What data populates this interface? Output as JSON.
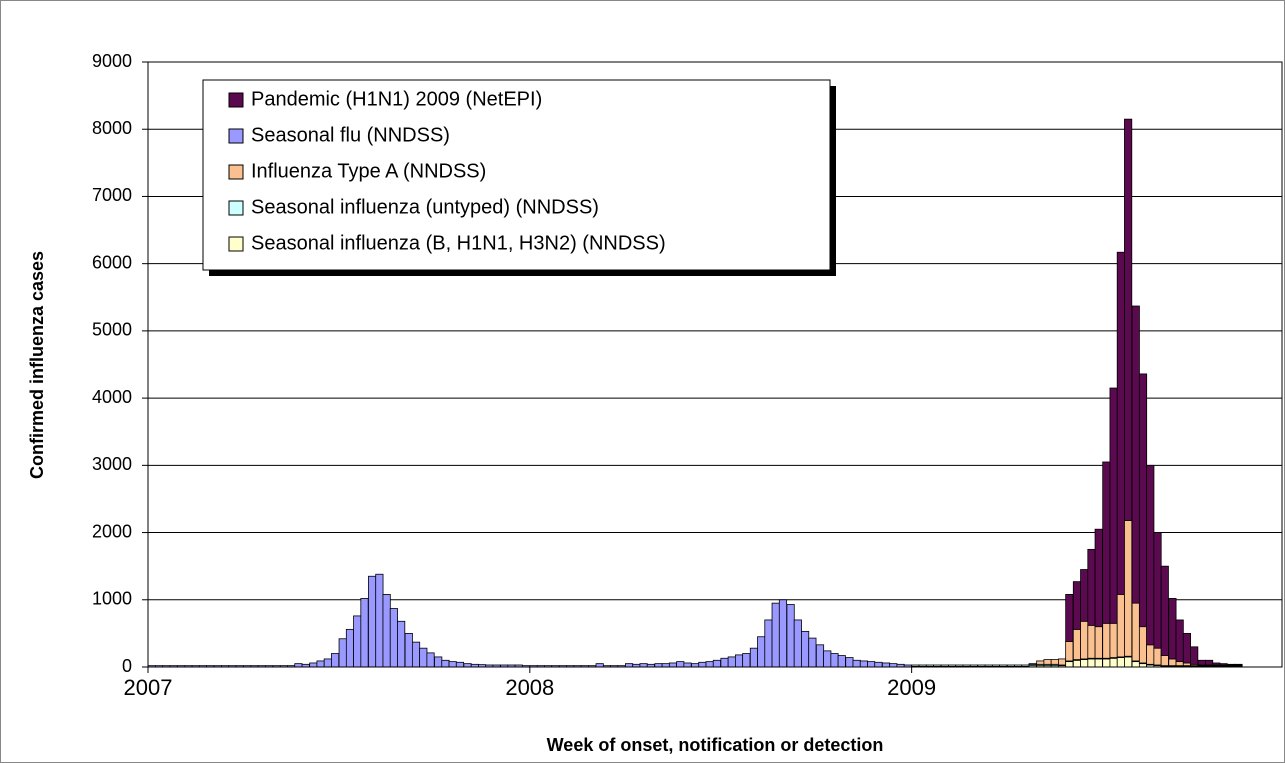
{
  "chart_data": {
    "type": "stacked-bar",
    "x_label": "Week of onset, notification or detection",
    "y_label": "Confirmed influenza cases",
    "xlim": [
      2007,
      2009.97
    ],
    "xticks": [
      2007,
      2008,
      2009
    ],
    "ylim": [
      0,
      9000
    ],
    "yticks": [
      0,
      1000,
      2000,
      3000,
      4000,
      5000,
      6000,
      7000,
      8000,
      9000
    ],
    "grid": true,
    "legend": "upper-left",
    "x": [
      2007.01,
      2007.029,
      2007.048,
      2007.067,
      2007.087,
      2007.106,
      2007.125,
      2007.144,
      2007.163,
      2007.183,
      2007.202,
      2007.221,
      2007.24,
      2007.26,
      2007.279,
      2007.298,
      2007.317,
      2007.337,
      2007.356,
      2007.375,
      2007.394,
      2007.413,
      2007.433,
      2007.452,
      2007.471,
      2007.49,
      2007.51,
      2007.529,
      2007.548,
      2007.567,
      2007.587,
      2007.606,
      2007.625,
      2007.644,
      2007.663,
      2007.683,
      2007.702,
      2007.721,
      2007.74,
      2007.76,
      2007.779,
      2007.798,
      2007.817,
      2007.837,
      2007.856,
      2007.875,
      2007.894,
      2007.913,
      2007.933,
      2007.952,
      2007.971,
      2007.99,
      2008.01,
      2008.029,
      2008.048,
      2008.067,
      2008.087,
      2008.106,
      2008.125,
      2008.144,
      2008.163,
      2008.183,
      2008.202,
      2008.221,
      2008.24,
      2008.26,
      2008.279,
      2008.298,
      2008.317,
      2008.337,
      2008.356,
      2008.375,
      2008.394,
      2008.413,
      2008.433,
      2008.452,
      2008.471,
      2008.49,
      2008.51,
      2008.529,
      2008.548,
      2008.567,
      2008.587,
      2008.606,
      2008.625,
      2008.644,
      2008.663,
      2008.683,
      2008.702,
      2008.721,
      2008.74,
      2008.76,
      2008.779,
      2008.798,
      2008.817,
      2008.837,
      2008.856,
      2008.875,
      2008.894,
      2008.913,
      2008.933,
      2008.952,
      2008.971,
      2008.99,
      2009.01,
      2009.029,
      2009.048,
      2009.067,
      2009.087,
      2009.106,
      2009.125,
      2009.144,
      2009.163,
      2009.183,
      2009.202,
      2009.221,
      2009.24,
      2009.26,
      2009.279,
      2009.298,
      2009.317,
      2009.337,
      2009.356,
      2009.375,
      2009.394,
      2009.413,
      2009.433,
      2009.452,
      2009.471,
      2009.49,
      2009.51,
      2009.529,
      2009.548,
      2009.567,
      2009.587,
      2009.606,
      2009.625,
      2009.644,
      2009.663,
      2009.683,
      2009.702,
      2009.721,
      2009.74,
      2009.76,
      2009.779,
      2009.798,
      2009.817,
      2009.837,
      2009.856
    ],
    "series": [
      {
        "name": "Pandemic (H1N1) 2009 (NetEPI)",
        "color": "#5c0a50",
        "values": [
          null,
          null,
          null,
          null,
          null,
          null,
          null,
          null,
          null,
          null,
          null,
          null,
          null,
          null,
          null,
          null,
          null,
          null,
          null,
          null,
          null,
          null,
          null,
          null,
          null,
          null,
          null,
          null,
          null,
          null,
          null,
          null,
          null,
          null,
          null,
          null,
          null,
          null,
          null,
          null,
          null,
          null,
          null,
          null,
          null,
          null,
          null,
          null,
          null,
          null,
          null,
          null,
          null,
          null,
          null,
          null,
          null,
          null,
          null,
          null,
          null,
          null,
          null,
          null,
          null,
          null,
          null,
          null,
          null,
          null,
          null,
          null,
          null,
          null,
          null,
          null,
          null,
          null,
          null,
          null,
          null,
          null,
          null,
          null,
          null,
          null,
          null,
          null,
          null,
          null,
          null,
          null,
          null,
          null,
          null,
          null,
          null,
          null,
          null,
          null,
          null,
          null,
          null,
          null,
          0,
          0,
          0,
          0,
          0,
          0,
          0,
          0,
          0,
          0,
          0,
          0,
          0,
          0,
          0,
          0,
          0,
          0,
          0,
          0,
          0,
          700,
          710,
          770,
          1130,
          1450,
          2400,
          3500,
          5090,
          5970,
          4420,
          3760,
          2670,
          1720,
          1330,
          900,
          620,
          440,
          260,
          70,
          70,
          30,
          20,
          10,
          10
        ]
      },
      {
        "name": "Seasonal flu (NNDSS)",
        "color": "#9999ff",
        "values": [
          20,
          20,
          20,
          20,
          20,
          20,
          20,
          20,
          20,
          20,
          20,
          20,
          20,
          20,
          20,
          20,
          20,
          20,
          20,
          20,
          50,
          40,
          60,
          90,
          120,
          200,
          420,
          560,
          760,
          1020,
          1350,
          1380,
          1080,
          870,
          680,
          500,
          370,
          280,
          210,
          150,
          100,
          80,
          70,
          50,
          40,
          35,
          30,
          30,
          30,
          30,
          30,
          20,
          20,
          20,
          20,
          20,
          20,
          20,
          20,
          20,
          20,
          50,
          20,
          20,
          20,
          50,
          40,
          50,
          40,
          50,
          50,
          60,
          80,
          60,
          50,
          70,
          80,
          100,
          130,
          150,
          180,
          200,
          280,
          450,
          700,
          950,
          1000,
          930,
          700,
          530,
          430,
          330,
          240,
          200,
          170,
          140,
          100,
          90,
          80,
          70,
          60,
          50,
          40,
          30,
          null,
          null,
          null,
          null,
          null,
          null,
          null,
          null,
          null,
          null,
          null,
          null,
          null,
          null,
          null,
          null,
          null,
          null,
          null,
          null,
          null,
          null,
          null,
          null,
          null,
          null,
          null,
          null,
          null,
          null,
          null,
          null,
          null,
          null,
          null,
          null,
          null,
          null,
          null,
          null,
          null,
          null,
          null,
          null,
          null
        ]
      },
      {
        "name": "Influenza Type A (NNDSS)",
        "color": "#fac090",
        "values": [
          null,
          null,
          null,
          null,
          null,
          null,
          null,
          null,
          null,
          null,
          null,
          null,
          null,
          null,
          null,
          null,
          null,
          null,
          null,
          null,
          null,
          null,
          null,
          null,
          null,
          null,
          null,
          null,
          null,
          null,
          null,
          null,
          null,
          null,
          null,
          null,
          null,
          null,
          null,
          null,
          null,
          null,
          null,
          null,
          null,
          null,
          null,
          null,
          null,
          null,
          null,
          null,
          null,
          null,
          null,
          null,
          null,
          null,
          null,
          null,
          null,
          null,
          null,
          null,
          null,
          null,
          null,
          null,
          null,
          null,
          null,
          null,
          null,
          null,
          null,
          null,
          null,
          null,
          null,
          null,
          null,
          null,
          null,
          null,
          null,
          null,
          null,
          null,
          null,
          null,
          null,
          null,
          null,
          null,
          null,
          null,
          null,
          null,
          null,
          null,
          null,
          null,
          null,
          null,
          0,
          0,
          0,
          0,
          0,
          0,
          0,
          0,
          0,
          0,
          0,
          0,
          0,
          0,
          0,
          0,
          10,
          50,
          70,
          70,
          90,
          290,
          450,
          560,
          490,
          470,
          520,
          510,
          930,
          2020,
          860,
          540,
          290,
          250,
          150,
          100,
          60,
          40,
          20,
          10,
          10,
          10,
          10,
          10,
          10
        ]
      },
      {
        "name": "Seasonal influenza (untyped) (NNDSS)",
        "color": "#ccffff",
        "values": [
          null,
          null,
          null,
          null,
          null,
          null,
          null,
          null,
          null,
          null,
          null,
          null,
          null,
          null,
          null,
          null,
          null,
          null,
          null,
          null,
          null,
          null,
          null,
          null,
          null,
          null,
          null,
          null,
          null,
          null,
          null,
          null,
          null,
          null,
          null,
          null,
          null,
          null,
          null,
          null,
          null,
          null,
          null,
          null,
          null,
          null,
          null,
          null,
          null,
          null,
          null,
          null,
          null,
          null,
          null,
          null,
          null,
          null,
          null,
          null,
          null,
          null,
          null,
          null,
          null,
          null,
          null,
          null,
          null,
          null,
          null,
          null,
          null,
          null,
          null,
          null,
          null,
          null,
          null,
          null,
          null,
          null,
          null,
          null,
          null,
          null,
          null,
          null,
          null,
          null,
          null,
          null,
          null,
          null,
          null,
          null,
          null,
          null,
          null,
          null,
          null,
          null,
          null,
          null,
          20,
          20,
          20,
          20,
          20,
          20,
          20,
          20,
          20,
          20,
          20,
          20,
          20,
          20,
          20,
          20,
          20,
          20,
          20,
          20,
          10,
          10,
          10,
          10,
          10,
          10,
          10,
          10,
          10,
          10,
          10,
          10,
          10,
          10,
          10,
          10,
          10,
          10,
          10,
          10,
          10,
          10,
          10,
          10,
          10
        ]
      },
      {
        "name": "Seasonal influenza (B, H1N1, H3N2) (NNDSS)",
        "color": "#ffffcc",
        "values": [
          null,
          null,
          null,
          null,
          null,
          null,
          null,
          null,
          null,
          null,
          null,
          null,
          null,
          null,
          null,
          null,
          null,
          null,
          null,
          null,
          null,
          null,
          null,
          null,
          null,
          null,
          null,
          null,
          null,
          null,
          null,
          null,
          null,
          null,
          null,
          null,
          null,
          null,
          null,
          null,
          null,
          null,
          null,
          null,
          null,
          null,
          null,
          null,
          null,
          null,
          null,
          null,
          null,
          null,
          null,
          null,
          null,
          null,
          null,
          null,
          null,
          null,
          null,
          null,
          null,
          null,
          null,
          null,
          null,
          null,
          null,
          null,
          null,
          null,
          null,
          null,
          null,
          null,
          null,
          null,
          null,
          null,
          null,
          null,
          null,
          null,
          null,
          null,
          null,
          null,
          null,
          null,
          null,
          null,
          null,
          null,
          null,
          null,
          null,
          null,
          null,
          null,
          null,
          null,
          10,
          10,
          10,
          10,
          10,
          10,
          10,
          10,
          10,
          10,
          10,
          10,
          10,
          10,
          10,
          10,
          20,
          20,
          20,
          20,
          20,
          80,
          100,
          110,
          120,
          120,
          120,
          130,
          140,
          150,
          80,
          50,
          30,
          20,
          10,
          10,
          10,
          10,
          10,
          10,
          10,
          10,
          10,
          10,
          10
        ]
      }
    ]
  }
}
